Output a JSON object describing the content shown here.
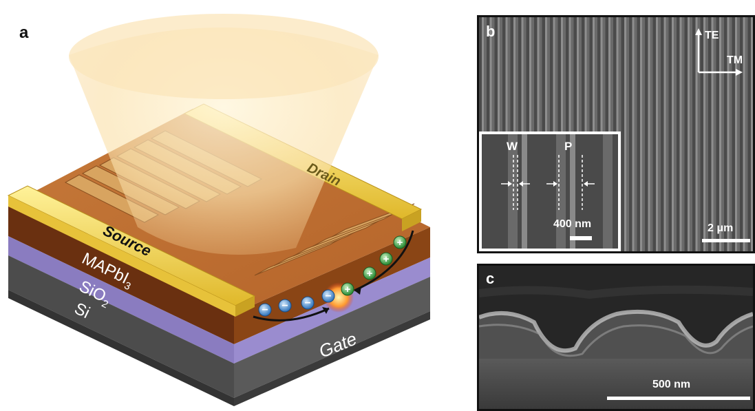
{
  "panel_a": {
    "letter": "a",
    "labels": {
      "drain": "Drain",
      "source": "Source",
      "gate": "Gate",
      "mapbi3_main": "MAPbI",
      "mapbi3_sub": "3",
      "sio2_main": "SiO",
      "sio2_sub": "2",
      "si": "Si"
    },
    "carriers": {
      "electron_symbol": "−",
      "hole_symbol": "+",
      "electron_count": 5,
      "hole_count": 5
    },
    "colors": {
      "gold": "#f2d047",
      "perovskite": "#7a3a10",
      "sio2": "#8878b8",
      "si": "#4a4a4a",
      "electron": "#4a8fd0",
      "hole": "#4caf50"
    }
  },
  "panel_b": {
    "letter": "b",
    "axis_te": "TE",
    "axis_tm": "TM",
    "scale_bar": "2 μm",
    "inset": {
      "label_w": "W",
      "label_p": "P",
      "scale_bar": "400 nm"
    }
  },
  "panel_c": {
    "letter": "c",
    "scale_bar": "500 nm"
  }
}
